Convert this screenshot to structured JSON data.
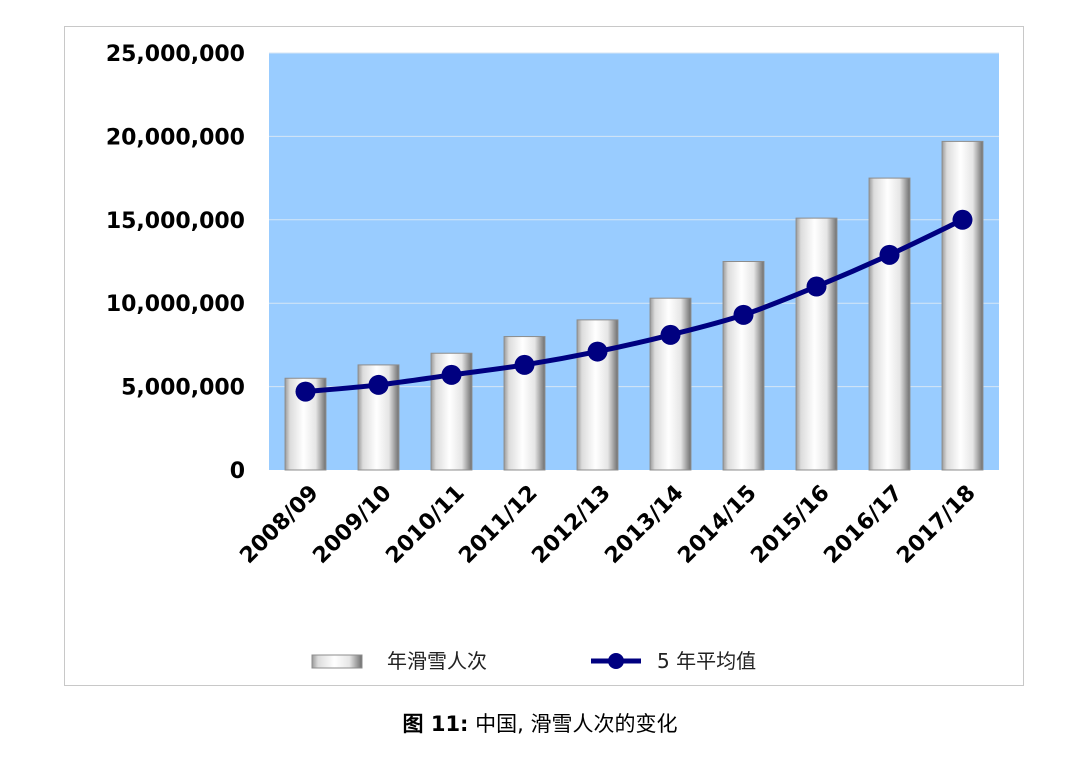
{
  "chart_data": {
    "type": "bar",
    "categories": [
      "2008/09",
      "2009/10",
      "2010/11",
      "2011/12",
      "2012/13",
      "2013/14",
      "2014/15",
      "2015/16",
      "2016/17",
      "2017/18"
    ],
    "series": [
      {
        "name": "年滑雪人次",
        "type": "bar",
        "values": [
          5500000,
          6300000,
          7000000,
          8000000,
          9000000,
          10300000,
          12500000,
          15100000,
          17500000,
          19700000
        ]
      },
      {
        "name": "5 年平均值",
        "type": "line",
        "values": [
          4700000,
          5100000,
          5700000,
          6300000,
          7100000,
          8100000,
          9300000,
          11000000,
          12900000,
          15000000
        ]
      }
    ],
    "y_ticks": [
      "0",
      "5,000,000",
      "10,000,000",
      "15,000,000",
      "20,000,000",
      "25,000,000"
    ],
    "ylim": [
      0,
      25000000
    ],
    "grid": true,
    "legend_position": "bottom",
    "colors": {
      "plot_bg": "#99ccff",
      "line": "#000080",
      "bar": "#ffffff"
    }
  },
  "caption": {
    "label": "图 11:",
    "text": " 中国, 滑雪人次的变化"
  }
}
